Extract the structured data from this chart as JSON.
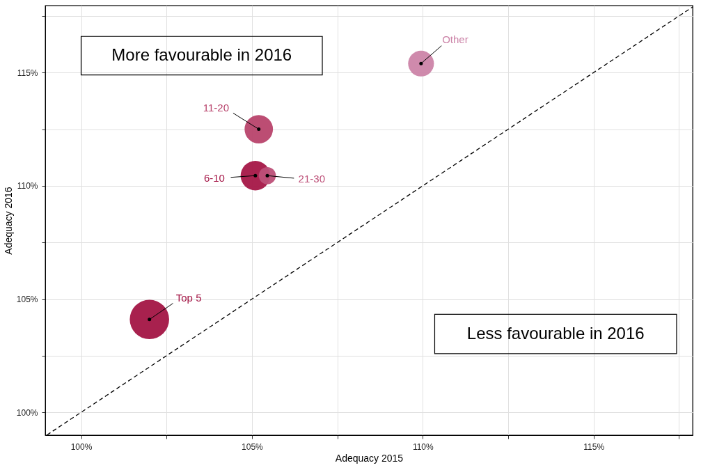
{
  "chart_data": {
    "type": "bubble",
    "xlabel": "Adequacy 2015",
    "ylabel": "Adequacy 2016",
    "xlim": [
      98.95,
      117.9
    ],
    "ylim": [
      98.99,
      117.96
    ],
    "xticks": [
      {
        "value": 100,
        "label": "100%"
      },
      {
        "value": 102.5,
        "label": null
      },
      {
        "value": 105,
        "label": "105%"
      },
      {
        "value": 107.5,
        "label": null
      },
      {
        "value": 110,
        "label": "110%"
      },
      {
        "value": 112.5,
        "label": null
      },
      {
        "value": 115,
        "label": "115%"
      },
      {
        "value": 117.5,
        "label": null
      }
    ],
    "yticks": [
      {
        "value": 100,
        "label": "100%"
      },
      {
        "value": 102.5,
        "label": null
      },
      {
        "value": 105,
        "label": "105%"
      },
      {
        "value": 107.5,
        "label": null
      },
      {
        "value": 110,
        "label": "110%"
      },
      {
        "value": 112.5,
        "label": null
      },
      {
        "value": 115,
        "label": "115%"
      },
      {
        "value": 117.5,
        "label": null
      }
    ],
    "grid": true,
    "series": [
      {
        "name": "Top 5",
        "color": "#a31545",
        "x": [
          102.0
        ],
        "values": [
          104.1
        ],
        "sizes": [
          1
        ]
      },
      {
        "name": "6-10",
        "color": "#a51747",
        "x": [
          105.1
        ],
        "values": [
          110.45
        ],
        "sizes": [
          0.56
        ]
      },
      {
        "name": "21-30",
        "color": "#bd5078",
        "x": [
          105.45
        ],
        "values": [
          110.45
        ],
        "sizes": [
          0.19
        ]
      },
      {
        "name": "11-20",
        "color": "#b8436c",
        "x": [
          105.2
        ],
        "values": [
          112.5
        ],
        "sizes": [
          0.52
        ]
      },
      {
        "name": "Other",
        "color": "#cc84a8",
        "x": [
          109.95
        ],
        "values": [
          115.4
        ],
        "sizes": [
          0.43
        ]
      },
      {
        "type": "line",
        "line_style": "dashed",
        "color": "#000000",
        "x": [
          99,
          117.9
        ],
        "values": [
          99,
          117.9
        ]
      }
    ],
    "annotations": [
      "More favourable in 2016",
      "Less favourable in 2016"
    ]
  }
}
